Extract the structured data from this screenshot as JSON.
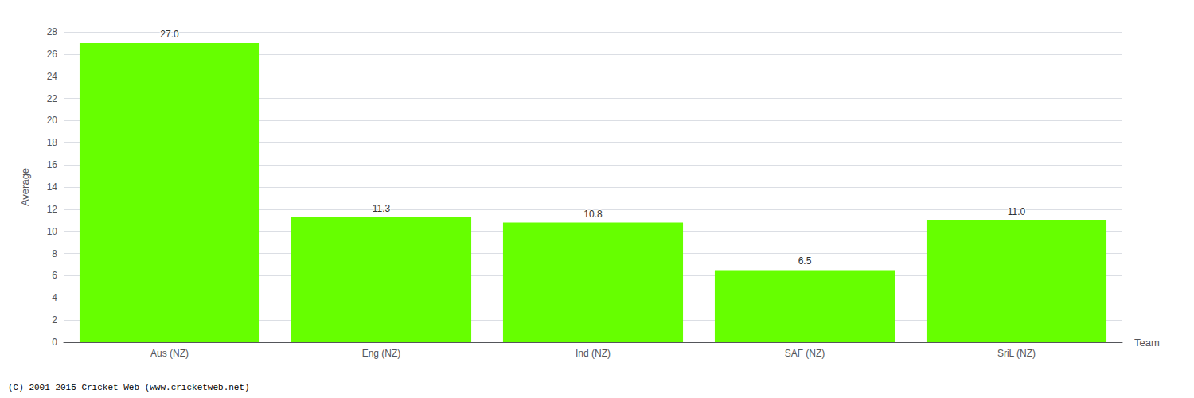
{
  "chart_data": {
    "type": "bar",
    "categories": [
      "Aus (NZ)",
      "Eng (NZ)",
      "Ind (NZ)",
      "SAF (NZ)",
      "SriL (NZ)"
    ],
    "values": [
      27.0,
      11.3,
      10.8,
      6.5,
      11.0
    ],
    "value_labels": [
      "27.0",
      "11.3",
      "10.8",
      "6.5",
      "11.0"
    ],
    "data_labels": true,
    "color": "#66ff00",
    "xlabel": "Team",
    "ylabel": "Average",
    "ylim": [
      0,
      28
    ],
    "yticks": [
      0,
      2,
      4,
      6,
      8,
      10,
      12,
      14,
      16,
      18,
      20,
      22,
      24,
      26,
      28
    ],
    "grid": true,
    "annotations": [
      "(C) 2001-2015 Cricket Web (www.cricketweb.net)"
    ]
  }
}
